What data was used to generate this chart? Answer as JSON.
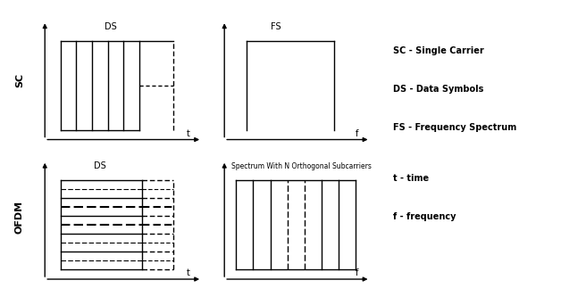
{
  "bg_color": "#ffffff",
  "line_color": "#000000",
  "legend_lines": [
    "SC - Single Carrier",
    "DS - Data Symbols",
    "FS - Frequency Spectrum",
    "t - time",
    "f - frequency"
  ],
  "sc_time_label": "DS",
  "sc_freq_label": "FS",
  "ofdm_time_label": "DS",
  "ofdm_freq_label": "Spectrum With N Orthogonal Subcarriers",
  "sc_ylabel": "SC",
  "ofdm_ylabel": "OFDM",
  "t_label": "t",
  "f_label": "f"
}
